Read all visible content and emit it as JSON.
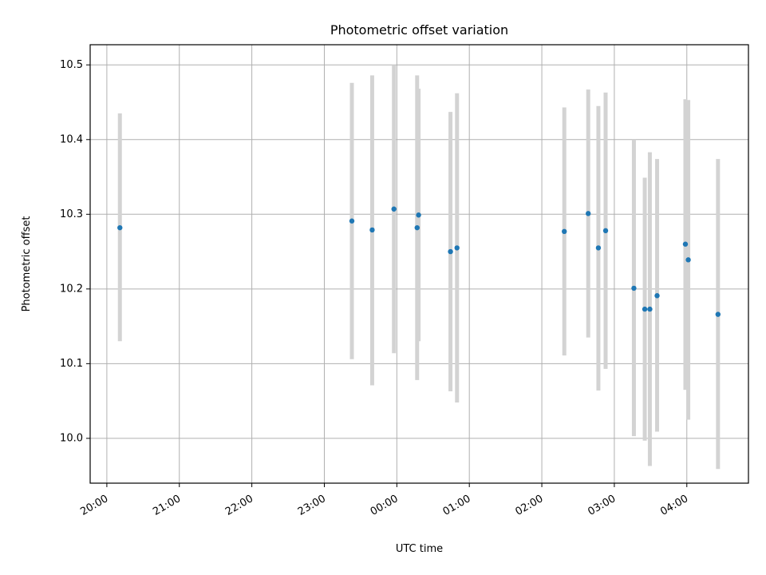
{
  "chart_data": {
    "type": "scatter",
    "title": "Photometric offset variation",
    "xlabel": "UTC time",
    "ylabel": "Photometric offset",
    "grid": true,
    "x_ticks": [
      "20:00",
      "21:00",
      "22:00",
      "23:00",
      "00:00",
      "01:00",
      "02:00",
      "03:00",
      "04:00"
    ],
    "x_tick_hours": [
      20,
      21,
      22,
      23,
      24,
      25,
      26,
      27,
      28
    ],
    "xlim_hours": [
      19.77,
      28.85
    ],
    "y_ticks": [
      10.0,
      10.1,
      10.2,
      10.3,
      10.4,
      10.5
    ],
    "ylim": [
      9.94,
      10.527
    ],
    "marker_color": "#1f77b4",
    "errorbar_color": "#d3d3d3",
    "points": [
      {
        "time": "20:11",
        "t": 20.18,
        "y": 10.282,
        "lo": 10.13,
        "hi": 10.435
      },
      {
        "time": "23:23",
        "t": 23.38,
        "y": 10.291,
        "lo": 10.106,
        "hi": 10.476
      },
      {
        "time": "23:39",
        "t": 23.66,
        "y": 10.279,
        "lo": 10.071,
        "hi": 10.486
      },
      {
        "time": "23:57",
        "t": 23.96,
        "y": 10.307,
        "lo": 10.114,
        "hi": 10.5
      },
      {
        "time": "00:17",
        "t": 24.28,
        "y": 10.282,
        "lo": 10.078,
        "hi": 10.486
      },
      {
        "time": "00:18",
        "t": 24.3,
        "y": 10.299,
        "lo": 10.13,
        "hi": 10.468
      },
      {
        "time": "00:44",
        "t": 24.74,
        "y": 10.25,
        "lo": 10.063,
        "hi": 10.437
      },
      {
        "time": "00:50",
        "t": 24.83,
        "y": 10.255,
        "lo": 10.048,
        "hi": 10.462
      },
      {
        "time": "02:18",
        "t": 26.31,
        "y": 10.277,
        "lo": 10.111,
        "hi": 10.443
      },
      {
        "time": "02:38",
        "t": 26.64,
        "y": 10.301,
        "lo": 10.135,
        "hi": 10.467
      },
      {
        "time": "02:46",
        "t": 26.78,
        "y": 10.255,
        "lo": 10.064,
        "hi": 10.445
      },
      {
        "time": "02:53",
        "t": 26.88,
        "y": 10.278,
        "lo": 10.093,
        "hi": 10.463
      },
      {
        "time": "03:16",
        "t": 27.27,
        "y": 10.201,
        "lo": 10.003,
        "hi": 10.4
      },
      {
        "time": "03:25",
        "t": 27.42,
        "y": 10.173,
        "lo": 9.997,
        "hi": 10.349
      },
      {
        "time": "03:29",
        "t": 27.49,
        "y": 10.173,
        "lo": 9.963,
        "hi": 10.383
      },
      {
        "time": "03:35",
        "t": 27.59,
        "y": 10.191,
        "lo": 10.009,
        "hi": 10.374
      },
      {
        "time": "03:59",
        "t": 27.98,
        "y": 10.26,
        "lo": 10.065,
        "hi": 10.454
      },
      {
        "time": "04:01",
        "t": 28.02,
        "y": 10.239,
        "lo": 10.025,
        "hi": 10.453
      },
      {
        "time": "04:26",
        "t": 28.43,
        "y": 10.166,
        "lo": 9.959,
        "hi": 10.374
      }
    ]
  }
}
